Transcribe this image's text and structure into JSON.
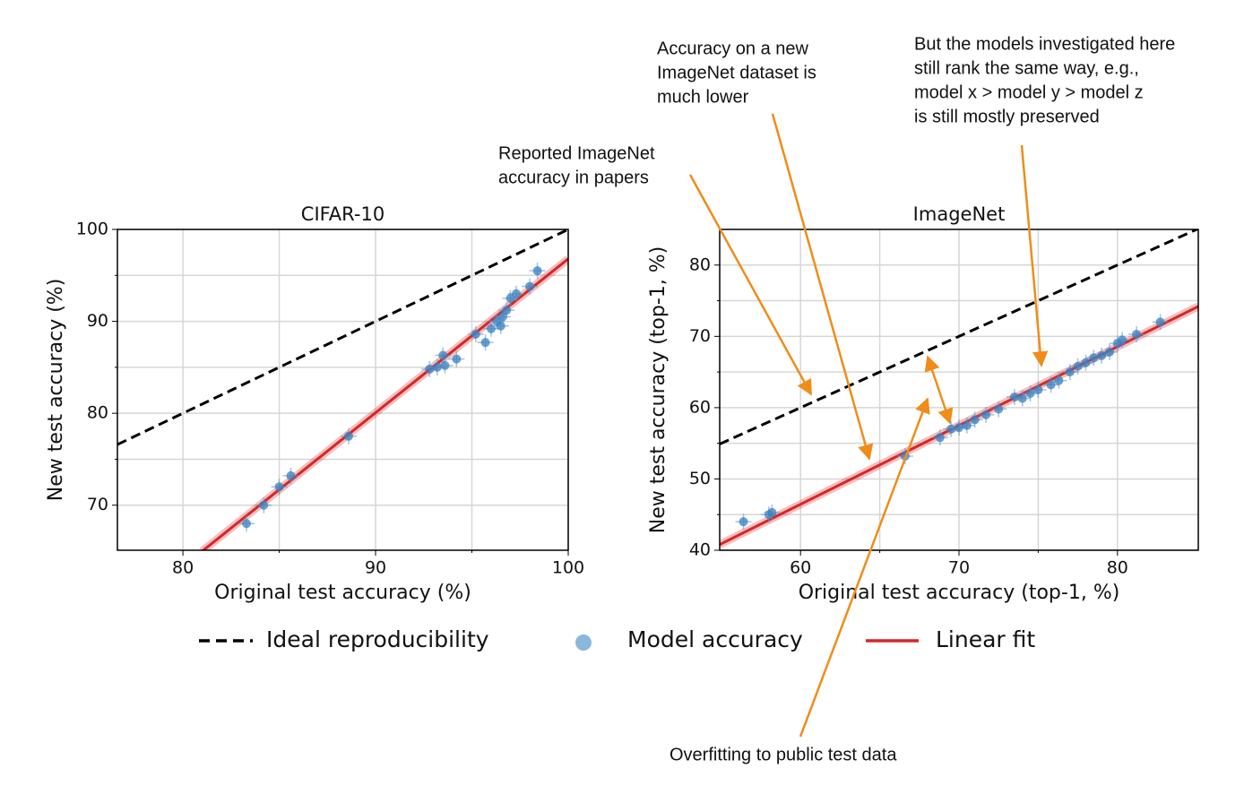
{
  "chart_data": [
    {
      "type": "scatter",
      "title": "CIFAR-10",
      "x_label": "Original test accuracy (%)",
      "y_label": "New test accuracy (%)",
      "xlim": [
        76.6,
        100
      ],
      "ylim": [
        65.1,
        100
      ],
      "xticks": [
        80,
        90,
        100
      ],
      "yticks": [
        70,
        80,
        90,
        100
      ],
      "xticks_minor": [
        85,
        95
      ],
      "yticks_minor": [
        75,
        85,
        95
      ],
      "grid": true,
      "ideal": {
        "x": [
          76.6,
          100
        ],
        "y": [
          76.6,
          100
        ]
      },
      "fit": {
        "x": [
          81,
          100
        ],
        "y": [
          65,
          96.8
        ]
      },
      "points": {
        "x": [
          83.3,
          84.2,
          85,
          85.6,
          88.6,
          92.8,
          93.2,
          93.5,
          93.6,
          94.2,
          95.2,
          95.7,
          96,
          96.3,
          96.5,
          96.6,
          96.8,
          97,
          97.3,
          98,
          98.4
        ],
        "y": [
          68,
          70,
          72,
          73.2,
          77.5,
          84.8,
          85,
          86.3,
          85.2,
          85.9,
          88.6,
          87.7,
          89.2,
          90,
          89.5,
          90.5,
          91.2,
          92.5,
          93,
          93.8,
          95.5
        ]
      }
    },
    {
      "type": "scatter",
      "title": "ImageNet",
      "x_label": "Original test accuracy (top-1, %)",
      "y_label": "New test accuracy (top-1, %)",
      "xlim": [
        54.9,
        85.1
      ],
      "ylim": [
        40,
        85
      ],
      "xticks": [
        60,
        70,
        80
      ],
      "yticks": [
        40,
        50,
        60,
        70,
        80
      ],
      "xticks_minor": [
        65,
        75
      ],
      "yticks_minor": [
        45,
        55,
        65,
        75
      ],
      "grid": true,
      "ideal": {
        "x": [
          54.9,
          85.1
        ],
        "y": [
          54.9,
          85.1
        ]
      },
      "fit": {
        "x": [
          54.9,
          85.1
        ],
        "y": [
          40.8,
          74.2
        ]
      },
      "points": {
        "x": [
          56.4,
          58,
          58.2,
          66.6,
          68.8,
          69.5,
          70,
          70.5,
          71,
          71.7,
          72.5,
          73.5,
          74,
          74.5,
          75,
          75.8,
          76.3,
          77,
          77.5,
          78,
          78.5,
          79,
          79.5,
          80,
          80.3,
          81.2,
          82.7
        ],
        "y": [
          44,
          45,
          45.3,
          53.2,
          55.8,
          57,
          57.2,
          57.5,
          58.3,
          59,
          59.8,
          61.5,
          61.3,
          62,
          62.5,
          63.2,
          63.8,
          65,
          65.8,
          66.3,
          67,
          67.3,
          67.8,
          69,
          69.5,
          70.3,
          72
        ]
      }
    }
  ],
  "legend": [
    {
      "name": "Ideal reproducibility",
      "color": "#000000"
    },
    {
      "name": "Model accuracy",
      "color": "#8ab8dc"
    },
    {
      "name": "Linear fit",
      "color": "#d62728"
    }
  ],
  "annotations": [
    {
      "lines": [
        "Reported ImageNet",
        "accuracy in papers"
      ]
    },
    {
      "lines": [
        "Accuracy on a new",
        "ImageNet dataset is",
        "much lower"
      ]
    },
    {
      "lines": [
        "But the models investigated here",
        "still rank the same way, e.g.,",
        "model x > model y > model z",
        "is still mostly preserved"
      ]
    },
    {
      "lines": [
        "Overfitting to public test data"
      ]
    }
  ],
  "arrow_color": "#f08c1a"
}
